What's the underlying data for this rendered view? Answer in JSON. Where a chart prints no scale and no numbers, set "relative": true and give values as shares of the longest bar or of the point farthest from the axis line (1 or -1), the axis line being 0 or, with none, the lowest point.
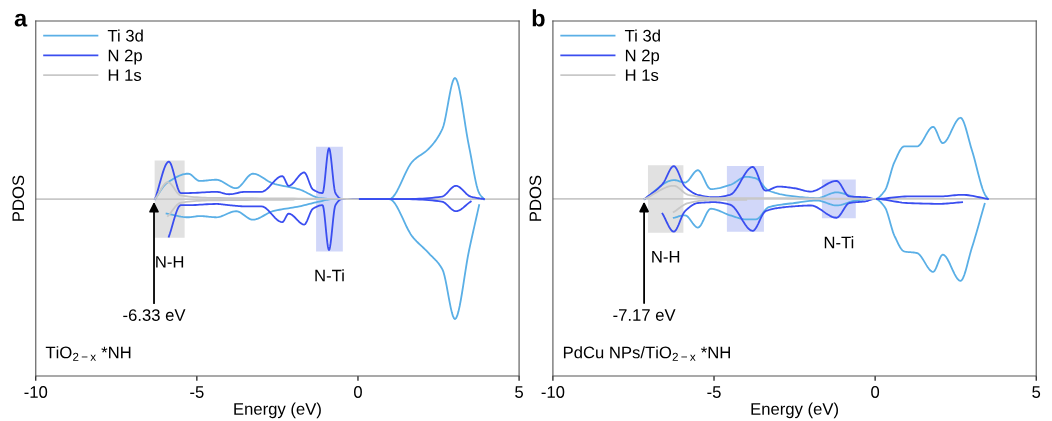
{
  "chart_data": [
    {
      "type": "line",
      "title": "a",
      "xlabel": "Energy (eV)",
      "ylabel": "PDOS",
      "relative": true,
      "xlim": [
        -10,
        5
      ],
      "xticks": [
        -10,
        -5,
        0,
        5
      ],
      "legend": "top left",
      "grid": false,
      "tick_labels": "x",
      "series": [
        {
          "name": "Ti 3d",
          "color": "#5aafe6",
          "x": [
            -6.3,
            -5.94,
            -5.27,
            -4.91,
            -4.4,
            -3.78,
            -3.26,
            -2.64,
            -1.82,
            -1.2,
            -0.78,
            0.97,
            1.69,
            2.21,
            2.62,
            3.01,
            3.45,
            3.76,
            3.91
          ],
          "values": [
            0,
            0.13,
            0.21,
            0.15,
            0.16,
            0.09,
            0.21,
            0.13,
            0.08,
            0.01,
            0,
            0,
            0.31,
            0.42,
            0.58,
            1.0,
            0.43,
            0.05,
            0
          ]
        },
        {
          "color": "#5aafe6",
          "x": [
            -5.94,
            -5.27,
            -4.91,
            -4.4,
            -3.78,
            -3.26,
            -2.64,
            -1.82,
            -1.2,
            -0.78,
            0.97,
            1.69,
            2.21,
            2.62,
            3.01,
            3.45,
            3.76
          ],
          "values": [
            -0.12,
            -0.15,
            -0.14,
            -0.15,
            -0.1,
            -0.17,
            -0.1,
            -0.06,
            -0.02,
            0,
            0,
            -0.31,
            -0.45,
            -0.58,
            -0.99,
            -0.42,
            -0.05
          ]
        },
        {
          "name": "N 2p",
          "color": "#3a4ef0",
          "x": [
            -6.3,
            -5.87,
            -5.5,
            -5.27,
            -4.4,
            -4.0,
            -3.5,
            -3.0,
            -2.35,
            -2.15,
            -1.67,
            -1.4,
            -1.1,
            -0.9,
            -0.7,
            -0.5,
            1.4,
            2.6,
            3.04,
            3.5,
            3.91
          ],
          "values": [
            0,
            0.31,
            0.05,
            0.05,
            0.06,
            0.04,
            0.06,
            0.06,
            0.19,
            0.11,
            0.22,
            0.08,
            0.05,
            0.42,
            0.05,
            0,
            0,
            0.02,
            0.11,
            0.02,
            0
          ]
        },
        {
          "color": "#3a4ef0",
          "x": [
            -5.87,
            -5.5,
            -5.27,
            -4.4,
            -4.0,
            -3.5,
            -3.0,
            -2.35,
            -2.15,
            -1.67,
            -1.4,
            -1.1,
            -0.9,
            -0.7,
            -0.5,
            1.4,
            2.6,
            3.04,
            3.5
          ],
          "values": [
            -0.31,
            -0.05,
            -0.05,
            -0.04,
            -0.05,
            -0.06,
            -0.06,
            -0.19,
            -0.12,
            -0.21,
            -0.08,
            -0.05,
            -0.42,
            -0.05,
            0,
            0,
            -0.02,
            -0.1,
            -0.02
          ]
        },
        {
          "name": "H 1s",
          "color": "#c8c8c8",
          "x": [
            -6.3,
            -5.9,
            -5.5,
            -4.5,
            -2.0,
            0
          ],
          "values": [
            0,
            0.14,
            0.03,
            0.01,
            0.005,
            0
          ]
        },
        {
          "color": "#c8c8c8",
          "x": [
            -5.9,
            -5.5,
            -4.5,
            -2.0
          ],
          "values": [
            -0.14,
            -0.03,
            -0.01,
            -0.005
          ]
        }
      ],
      "bands": [
        {
          "axis": "x",
          "from": -6.31,
          "to": -5.38,
          "label": "N-H",
          "color": "#d9d9d9"
        },
        {
          "axis": "x",
          "from": -1.3,
          "to": -0.47,
          "label": "N-Ti",
          "color": "#c5cdf7"
        }
      ],
      "annotations": [
        {
          "text": "-6.33 eV",
          "x": -6.33,
          "y": 0
        },
        "TiO$_{2−x}$ *NH"
      ]
    },
    {
      "type": "line",
      "title": "b",
      "xlabel": "Energy (eV)",
      "ylabel": "PDOS",
      "relative": true,
      "xlim": [
        -10,
        5
      ],
      "xticks": [
        -10,
        -5,
        0,
        5
      ],
      "legend": "top left",
      "grid": false,
      "tick_labels": "x",
      "series": [
        {
          "name": "Ti 3d",
          "color": "#5aafe6",
          "x": [
            -7.15,
            -6.25,
            -5.9,
            -5.5,
            -5.1,
            -4.5,
            -4.0,
            -3.7,
            -3.3,
            -2.5,
            -1.8,
            -1.2,
            -0.6,
            0,
            0.3,
            0.6,
            0.9,
            1.3,
            1.8,
            2.1,
            2.65,
            3.0,
            3.4,
            3.5
          ],
          "values": [
            0,
            0.23,
            0.2,
            0.35,
            0.12,
            0.17,
            0.27,
            0.25,
            0.1,
            0.03,
            0.01,
            0.08,
            0.02,
            0,
            0.1,
            0.45,
            0.64,
            0.64,
            0.88,
            0.68,
            0.99,
            0.6,
            0.06,
            0
          ]
        },
        {
          "color": "#5aafe6",
          "x": [
            -6.25,
            -5.9,
            -5.5,
            -5.1,
            -4.5,
            -4.0,
            -3.7,
            -3.3,
            -2.5,
            -1.8,
            -1.2,
            -0.6,
            0,
            0.3,
            0.6,
            0.9,
            1.3,
            1.8,
            2.1,
            2.65,
            3.0,
            3.4
          ],
          "values": [
            -0.23,
            -0.2,
            -0.35,
            -0.12,
            -0.2,
            -0.25,
            -0.25,
            -0.1,
            -0.05,
            -0.02,
            -0.08,
            -0.02,
            0,
            -0.1,
            -0.45,
            -0.64,
            -0.66,
            -0.89,
            -0.68,
            -1.0,
            -0.6,
            -0.06
          ]
        },
        {
          "name": "N 2p",
          "color": "#3a4ef0",
          "x": [
            -7.15,
            -6.6,
            -6.25,
            -5.9,
            -5.5,
            -5.0,
            -4.5,
            -3.8,
            -3.4,
            -3.0,
            -2.5,
            -2.0,
            -1.2,
            -0.8,
            -0.3,
            0,
            1.0,
            2.0,
            2.7,
            3.5
          ],
          "values": [
            0,
            0.18,
            0.4,
            0.15,
            0.05,
            0.02,
            0.05,
            0.39,
            0.1,
            0.15,
            0.13,
            0.09,
            0.22,
            0.03,
            0.02,
            0,
            0.03,
            0.03,
            0.05,
            0
          ]
        },
        {
          "color": "#3a4ef0",
          "x": [
            -6.6,
            -6.25,
            -5.9,
            -5.5,
            -5.0,
            -4.5,
            -3.8,
            -3.4,
            -3.0,
            -2.5,
            -2.0,
            -1.2,
            -0.8,
            -0.3,
            0,
            1.0,
            2.0,
            2.7
          ],
          "values": [
            -0.18,
            -0.4,
            -0.15,
            -0.05,
            -0.04,
            -0.07,
            -0.39,
            -0.15,
            -0.11,
            -0.09,
            -0.08,
            -0.23,
            -0.05,
            -0.03,
            0,
            -0.05,
            -0.06,
            -0.04
          ]
        },
        {
          "name": "H 1s",
          "color": "#c8c8c8",
          "x": [
            -7.15,
            -6.25,
            -5.8,
            -5.0,
            -4.0,
            0
          ],
          "values": [
            0,
            0.16,
            0.05,
            0.01,
            0.01,
            0
          ]
        },
        {
          "color": "#c8c8c8",
          "x": [
            -6.25,
            -5.8,
            -5.0,
            -4.0
          ],
          "values": [
            -0.16,
            -0.05,
            -0.01,
            -0.01
          ]
        }
      ],
      "bands": [
        {
          "axis": "x",
          "from": -7.05,
          "to": -5.95,
          "label": "N-H",
          "color": "#d9d9d9"
        },
        {
          "axis": "x",
          "from": -4.6,
          "to": -3.45,
          "label": null,
          "color": "#c5cdf7"
        },
        {
          "axis": "x",
          "from": -1.65,
          "to": -0.6,
          "label": "N-Ti",
          "color": "#c5cdf7"
        }
      ],
      "annotations": [
        {
          "text": "-7.17 eV",
          "x": -7.17,
          "y": 0
        },
        "PdCu NPs/TiO$_{2−x}$ *NH"
      ]
    }
  ]
}
